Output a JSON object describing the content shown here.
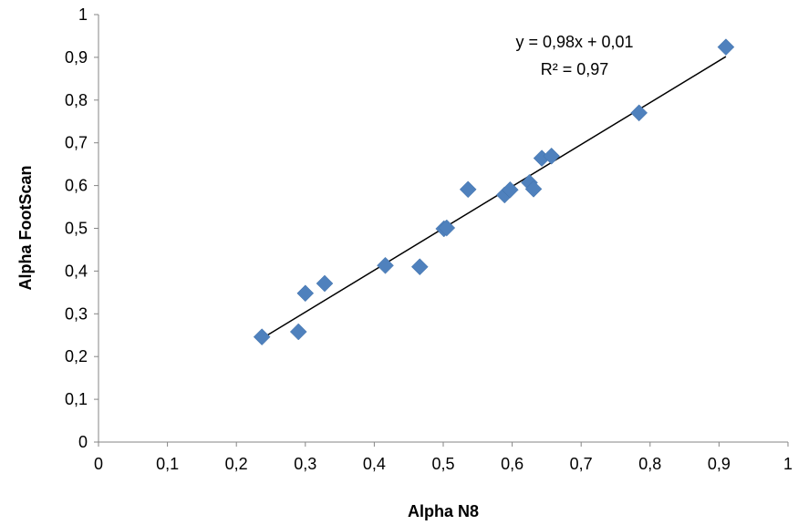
{
  "chart_data": {
    "type": "scatter",
    "title": "",
    "xlabel": "Alpha N8",
    "ylabel": "Alpha FootScan",
    "xlim": [
      0,
      1
    ],
    "ylim": [
      0,
      1
    ],
    "x_ticks": [
      "0",
      "0,1",
      "0,2",
      "0,3",
      "0,4",
      "0,5",
      "0,6",
      "0,7",
      "0,8",
      "0,9",
      "1"
    ],
    "y_ticks": [
      "0",
      "0,1",
      "0,2",
      "0,3",
      "0,4",
      "0,5",
      "0,6",
      "0,7",
      "0,8",
      "0,9",
      "1"
    ],
    "grid": false,
    "legend": "none",
    "marker": "diamond",
    "marker_color": "#4F81BD",
    "trendline_color": "#000000",
    "points": [
      {
        "x": 0.237,
        "y": 0.246
      },
      {
        "x": 0.29,
        "y": 0.258
      },
      {
        "x": 0.3,
        "y": 0.348
      },
      {
        "x": 0.328,
        "y": 0.371
      },
      {
        "x": 0.416,
        "y": 0.413
      },
      {
        "x": 0.466,
        "y": 0.41
      },
      {
        "x": 0.501,
        "y": 0.499
      },
      {
        "x": 0.505,
        "y": 0.501
      },
      {
        "x": 0.536,
        "y": 0.591
      },
      {
        "x": 0.589,
        "y": 0.578
      },
      {
        "x": 0.597,
        "y": 0.59
      },
      {
        "x": 0.625,
        "y": 0.607
      },
      {
        "x": 0.631,
        "y": 0.592
      },
      {
        "x": 0.643,
        "y": 0.664
      },
      {
        "x": 0.657,
        "y": 0.669
      },
      {
        "x": 0.784,
        "y": 0.77
      },
      {
        "x": 0.91,
        "y": 0.924
      }
    ],
    "trendline": {
      "slope": 0.98,
      "intercept": 0.01,
      "x_range": [
        0.237,
        0.91
      ],
      "equation_label": "y = 0,98x + 0,01",
      "r2_label": "R² = 0,97"
    }
  }
}
